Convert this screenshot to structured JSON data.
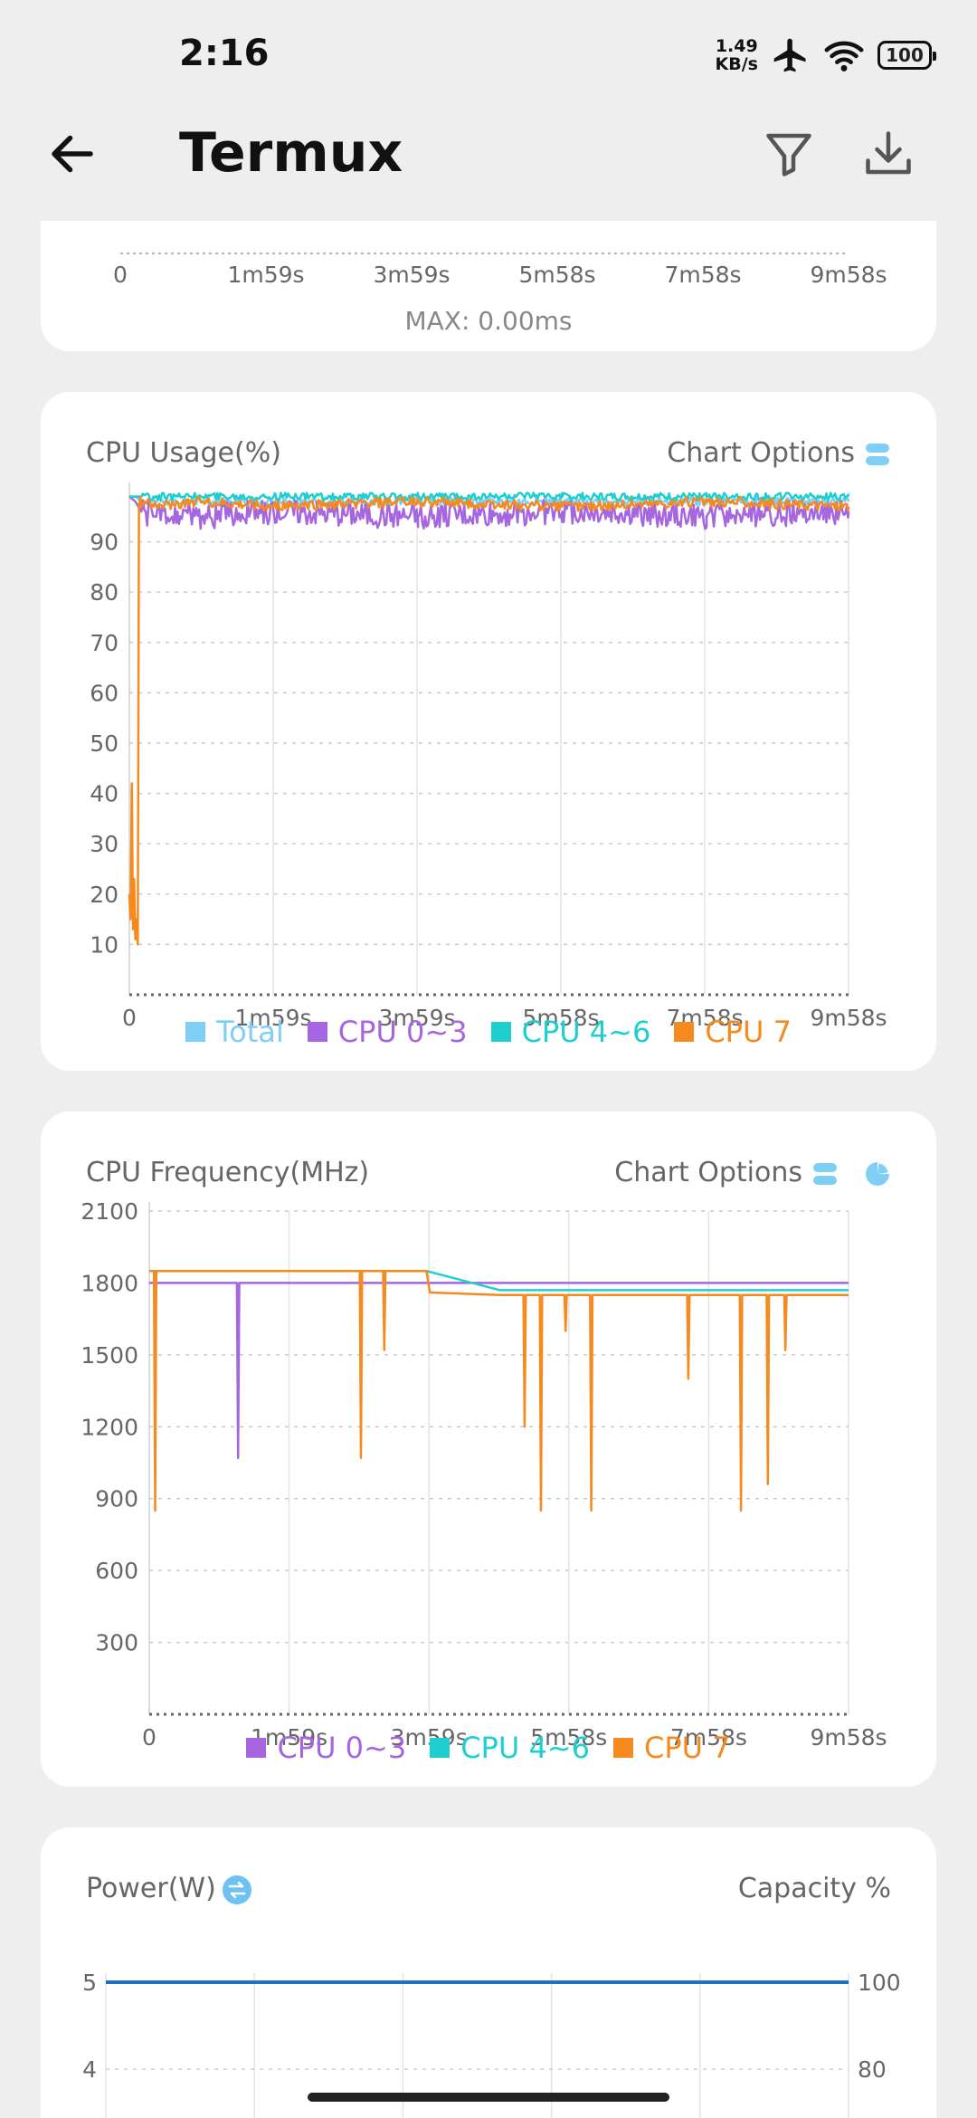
{
  "status": {
    "time": "2:16",
    "net_value": "1.49",
    "net_unit": "KB/s",
    "battery": "100"
  },
  "header": {
    "title": "Termux"
  },
  "top_chart": {
    "x_ticks": [
      "0",
      "1m59s",
      "3m59s",
      "5m58s",
      "7m58s",
      "9m58s"
    ],
    "footer": "MAX: 0.00ms"
  },
  "cpu_usage": {
    "title": "CPU Usage(%)",
    "options_label": "Chart Options",
    "legend": [
      {
        "label": "Total",
        "color": "#7fcef5"
      },
      {
        "label": "CPU 0~3",
        "color": "#a566e0"
      },
      {
        "label": "CPU 4~6",
        "color": "#1fcfcf"
      },
      {
        "label": "CPU 7",
        "color": "#f58a1f"
      }
    ]
  },
  "cpu_freq": {
    "title": "CPU Frequency(MHz)",
    "options_label": "Chart Options",
    "legend": [
      {
        "label": "CPU 0~3",
        "color": "#a566e0"
      },
      {
        "label": "CPU 4~6",
        "color": "#1fcfcf"
      },
      {
        "label": "CPU 7",
        "color": "#f58a1f"
      }
    ]
  },
  "power": {
    "title": "Power(W)",
    "right_label": "Capacity %",
    "left_ticks": [
      "5",
      "4"
    ],
    "right_ticks": [
      "100",
      "80"
    ]
  },
  "chart_data": [
    {
      "type": "line",
      "title": "CPU Usage(%)",
      "x_ticks": [
        "0",
        "1m59s",
        "3m59s",
        "5m58s",
        "7m58s",
        "9m58s"
      ],
      "xlim": [
        0,
        598
      ],
      "y_ticks": [
        10,
        20,
        30,
        40,
        50,
        60,
        70,
        80,
        90
      ],
      "ylim": [
        0,
        100
      ],
      "grid": true,
      "legend_position": "bottom",
      "series": [
        {
          "name": "Total",
          "x": [
            0,
            5,
            10,
            20,
            40,
            60,
            120,
            240,
            360,
            480,
            598
          ],
          "values": [
            99,
            99,
            98,
            98,
            98,
            98,
            98,
            98,
            98,
            98,
            98
          ]
        },
        {
          "name": "CPU 0~3",
          "x": [
            0,
            5,
            10,
            20,
            40,
            60,
            120,
            240,
            360,
            480,
            598
          ],
          "values": [
            99,
            98,
            96,
            95,
            96,
            95,
            96,
            95,
            96,
            95,
            96
          ]
        },
        {
          "name": "CPU 4~6",
          "x": [
            0,
            5,
            10,
            20,
            40,
            60,
            120,
            240,
            360,
            480,
            598
          ],
          "values": [
            99,
            99,
            99,
            99,
            99,
            99,
            99,
            99,
            99,
            99,
            99
          ]
        },
        {
          "name": "CPU 7",
          "x": [
            0,
            1,
            2,
            3,
            4,
            5,
            6,
            7,
            8,
            9,
            10,
            12,
            20,
            60,
            120,
            240,
            360,
            480,
            598
          ],
          "values": [
            20,
            15,
            42,
            13,
            23,
            11,
            15,
            10,
            97,
            99,
            97,
            98,
            97,
            98,
            97,
            98,
            97,
            98,
            97
          ]
        }
      ]
    },
    {
      "type": "line",
      "title": "CPU Frequency(MHz)",
      "x_ticks": [
        "0",
        "1m59s",
        "3m59s",
        "5m58s",
        "7m58s",
        "9m58s"
      ],
      "xlim": [
        0,
        598
      ],
      "y_ticks": [
        300,
        600,
        900,
        1200,
        1500,
        1800,
        2100
      ],
      "ylim": [
        0,
        2100
      ],
      "grid": true,
      "legend_position": "bottom",
      "series": [
        {
          "name": "CPU 0~3",
          "x": [
            0,
            75,
            76,
            77,
            330,
            598
          ],
          "values": [
            1800,
            1800,
            1070,
            1800,
            1800,
            1800
          ]
        },
        {
          "name": "CPU 4~6",
          "x": [
            0,
            237,
            300,
            598
          ],
          "values": [
            1850,
            1850,
            1770,
            1770
          ]
        },
        {
          "name": "CPU 7",
          "x": [
            0,
            4,
            5,
            6,
            180,
            181,
            182,
            200,
            201,
            202,
            237,
            240,
            300,
            320,
            321,
            322,
            334,
            335,
            336,
            355,
            356,
            357,
            377,
            378,
            379,
            460,
            461,
            462,
            505,
            506,
            507,
            528,
            529,
            530,
            543,
            544,
            545,
            598
          ],
          "values": [
            1850,
            1850,
            850,
            1850,
            1850,
            1070,
            1850,
            1850,
            1520,
            1850,
            1850,
            1760,
            1750,
            1750,
            1200,
            1750,
            1750,
            850,
            1750,
            1750,
            1600,
            1750,
            1750,
            850,
            1750,
            1750,
            1400,
            1750,
            1750,
            850,
            1750,
            1750,
            960,
            1750,
            1750,
            1520,
            1750,
            1750
          ]
        }
      ]
    },
    {
      "type": "line",
      "title": "Power(W)",
      "y_ticks_left": [
        4,
        5
      ],
      "y_ticks_right": [
        80,
        100
      ],
      "grid": true,
      "series": [
        {
          "name": "Capacity %",
          "x": [
            0,
            598
          ],
          "values": [
            100,
            100
          ]
        }
      ]
    }
  ]
}
